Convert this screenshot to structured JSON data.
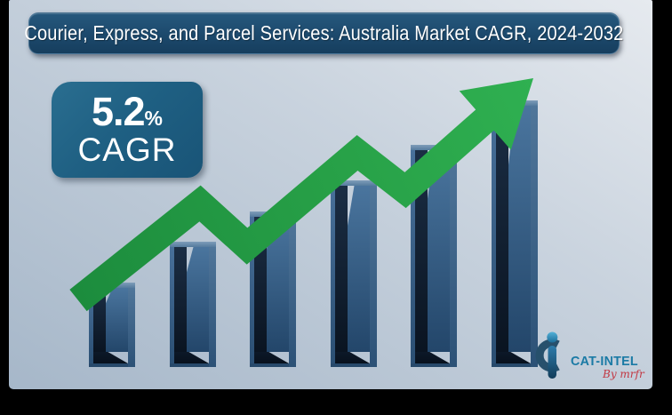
{
  "header": {
    "title": "Courier, Express, and Parcel Services: Australia Market CAGR, 2024-2032"
  },
  "cagr_badge": {
    "value": "5.2",
    "unit": "%",
    "label": "CAGR"
  },
  "chart_data": {
    "type": "bar",
    "title": "Courier, Express, and Parcel Services: Australia Market CAGR, 2024-2032",
    "categories": [
      "",
      "",
      "",
      "",
      "",
      ""
    ],
    "values": [
      95,
      141,
      175,
      210,
      250,
      300
    ],
    "unit": "relative-height-px",
    "xlabel": "",
    "ylabel": "",
    "grid": false,
    "legend": false,
    "annotations": [
      "5.2% CAGR"
    ],
    "trend_arrow": "up-zigzag"
  },
  "logo": {
    "brand": "CAT-INTEL",
    "byline": "By mrfr"
  },
  "colors": {
    "frame": "#000000",
    "bg-light": "#e6eaef",
    "bg-dark": "#a6b7c9",
    "title-bg": "#1c496c",
    "badge-bg": "#1f6083",
    "bar-steel": "#3d6890",
    "bar-dark": "#0d1b2b",
    "bar-cap": "#6d90af",
    "arrow-green-dark": "#1c8c3d",
    "arrow-green-light": "#2fb051",
    "logo-teal": "#1a7aa5",
    "logo-slate": "#27506c",
    "logo-red": "#c23742",
    "text-white": "#ffffff"
  }
}
